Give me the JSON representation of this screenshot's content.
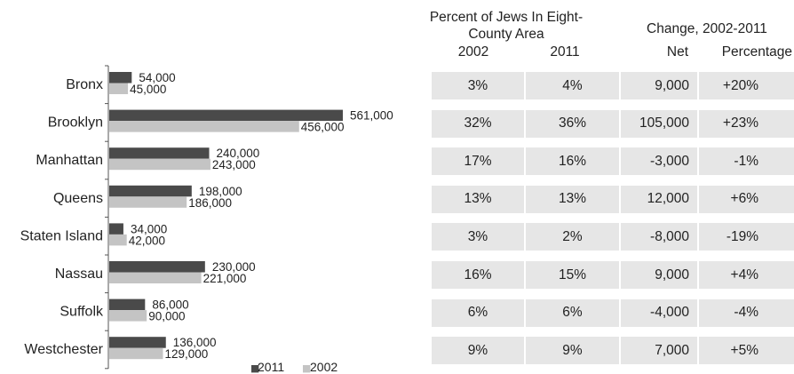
{
  "chart_data": {
    "type": "bar",
    "orientation": "horizontal",
    "categories": [
      "Bronx",
      "Brooklyn",
      "Manhattan",
      "Queens",
      "Staten Island",
      "Nassau",
      "Suffolk",
      "Westchester"
    ],
    "series": [
      {
        "name": "2011",
        "values": [
          54000,
          561000,
          240000,
          198000,
          34000,
          230000,
          86000,
          136000
        ],
        "labels": [
          "54,000",
          "561,000",
          "240,000",
          "198,000",
          "34,000",
          "230,000",
          "86,000",
          "136,000"
        ],
        "color": "#4a4a4a"
      },
      {
        "name": "2002",
        "values": [
          45000,
          456000,
          243000,
          186000,
          42000,
          221000,
          90000,
          129000
        ],
        "labels": [
          "45,000",
          "456,000",
          "243,000",
          "186,000",
          "42,000",
          "221,000",
          "90,000",
          "129,000"
        ],
        "color": "#c4c4c4"
      }
    ],
    "legend": {
      "position": "bottom-right",
      "items": [
        "2011",
        "2002"
      ],
      "marker": "■"
    },
    "grid": false
  },
  "table": {
    "header_pct_line1": "Percent of Jews In Eight-",
    "header_pct_line2": "County Area",
    "header_change": "Change, 2002-2011",
    "col_2002": "2002",
    "col_2011": "2011",
    "col_net": "Net",
    "col_percentage": "Percentage",
    "rows": [
      {
        "p2002": "3%",
        "p2011": "4%",
        "net": "9,000",
        "pct": "+20%"
      },
      {
        "p2002": "32%",
        "p2011": "36%",
        "net": "105,000",
        "pct": "+23%"
      },
      {
        "p2002": "17%",
        "p2011": "16%",
        "net": "-3,000",
        "pct": "-1%"
      },
      {
        "p2002": "13%",
        "p2011": "13%",
        "net": "12,000",
        "pct": "+6%"
      },
      {
        "p2002": "3%",
        "p2011": "2%",
        "net": "-8,000",
        "pct": "-19%"
      },
      {
        "p2002": "16%",
        "p2011": "15%",
        "net": "9,000",
        "pct": "+4%"
      },
      {
        "p2002": "6%",
        "p2011": "6%",
        "net": "-4,000",
        "pct": "-4%"
      },
      {
        "p2002": "9%",
        "p2011": "9%",
        "net": "7,000",
        "pct": "+5%"
      }
    ]
  }
}
